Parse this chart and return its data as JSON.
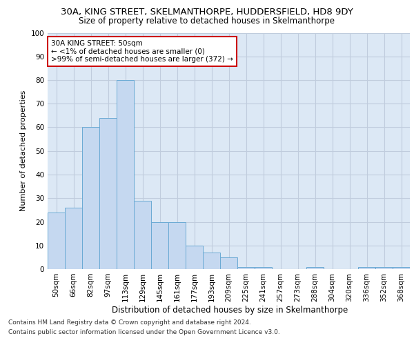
{
  "title_line1": "30A, KING STREET, SKELMANTHORPE, HUDDERSFIELD, HD8 9DY",
  "title_line2": "Size of property relative to detached houses in Skelmanthorpe",
  "xlabel": "Distribution of detached houses by size in Skelmanthorpe",
  "ylabel": "Number of detached properties",
  "categories": [
    "50sqm",
    "66sqm",
    "82sqm",
    "97sqm",
    "113sqm",
    "129sqm",
    "145sqm",
    "161sqm",
    "177sqm",
    "193sqm",
    "209sqm",
    "225sqm",
    "241sqm",
    "257sqm",
    "273sqm",
    "288sqm",
    "304sqm",
    "320sqm",
    "336sqm",
    "352sqm",
    "368sqm"
  ],
  "values": [
    24,
    26,
    60,
    64,
    80,
    29,
    20,
    20,
    10,
    7,
    5,
    1,
    1,
    0,
    0,
    1,
    0,
    0,
    1,
    1,
    1
  ],
  "bar_color": "#c5d8f0",
  "bar_edge_color": "#6aaad4",
  "annotation_line1": "30A KING STREET: 50sqm",
  "annotation_line2": "← <1% of detached houses are smaller (0)",
  "annotation_line3": ">99% of semi-detached houses are larger (372) →",
  "annotation_box_color": "#ffffff",
  "annotation_box_edge": "#cc0000",
  "ylim": [
    0,
    100
  ],
  "yticks": [
    0,
    10,
    20,
    30,
    40,
    50,
    60,
    70,
    80,
    90,
    100
  ],
  "grid_color": "#c0ccdd",
  "bg_color": "#dce8f5",
  "footer_line1": "Contains HM Land Registry data © Crown copyright and database right 2024.",
  "footer_line2": "Contains public sector information licensed under the Open Government Licence v3.0.",
  "title1_fontsize": 9.5,
  "title2_fontsize": 8.5,
  "xlabel_fontsize": 8.5,
  "ylabel_fontsize": 8,
  "tick_fontsize": 7.5,
  "annotation_fontsize": 7.5,
  "footer_fontsize": 6.5
}
